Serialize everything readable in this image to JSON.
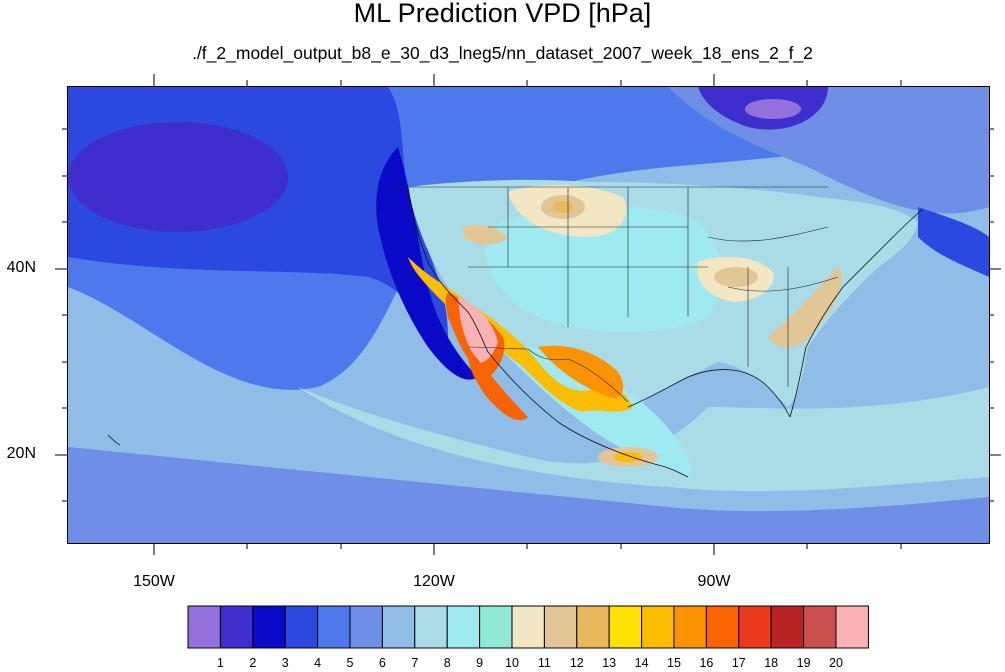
{
  "title": "ML Prediction VPD [hPa]",
  "subtitle": "./f_2_model_output_b8_e_30_d3_lneg5/nn_dataset_2007_week_18_ens_2_f_2",
  "map": {
    "lat_labels": [
      "40N",
      "20N"
    ],
    "lon_labels": [
      "150W",
      "120W",
      "90W"
    ]
  },
  "colorbar": {
    "colors": [
      "#9370db",
      "#3e2fcc",
      "#0a0ac8",
      "#2b48df",
      "#4e79ec",
      "#6f8fe6",
      "#8fbde8",
      "#a9dce6",
      "#9eeaf0",
      "#90e8d6",
      "#f3e6c3",
      "#e2c696",
      "#e8b85c",
      "#fde100",
      "#fcbd00",
      "#fb9300",
      "#f96300",
      "#ec3b1c",
      "#b82323",
      "#cc4f4f",
      "#fbb2b4"
    ],
    "labels": [
      "1",
      "2",
      "3",
      "4",
      "5",
      "6",
      "7",
      "8",
      "9",
      "10",
      "11",
      "12",
      "13",
      "14",
      "15",
      "16",
      "17",
      "18",
      "19",
      "20"
    ]
  }
}
